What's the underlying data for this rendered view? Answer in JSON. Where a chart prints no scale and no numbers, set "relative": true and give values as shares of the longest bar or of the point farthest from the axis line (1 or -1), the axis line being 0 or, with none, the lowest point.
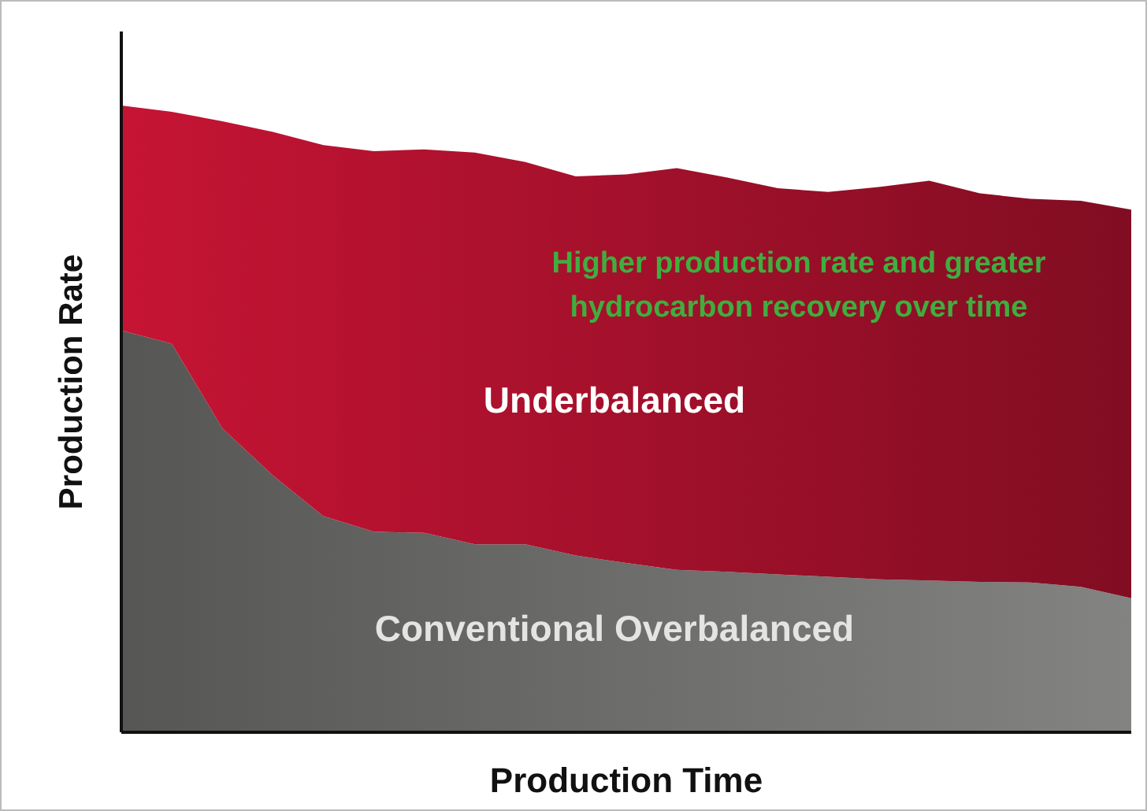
{
  "chart_data": {
    "type": "area",
    "relative": true,
    "stacked": true,
    "xlabel": "Production Time",
    "ylabel": "Production Rate",
    "annotations": [
      "Higher production rate and greater hydrocarbon recovery over time"
    ],
    "categories": [
      null,
      null,
      null,
      null,
      null,
      null,
      null,
      null,
      null,
      null,
      null,
      null,
      null,
      null,
      null,
      null,
      null,
      null,
      null,
      null,
      null
    ],
    "series": [
      {
        "name": "Conventional Overbalanced",
        "color": "#6a6a68",
        "values": [
          0.641,
          0.62,
          0.485,
          0.41,
          0.345,
          0.32,
          0.318,
          0.3,
          0.3,
          0.282,
          0.27,
          0.259,
          0.256,
          0.252,
          0.248,
          0.244,
          0.242,
          0.24,
          0.239,
          0.232,
          0.214
        ]
      },
      {
        "name": "Underbalanced",
        "color": "#a0102a",
        "values": [
          0.359,
          0.37,
          0.49,
          0.548,
          0.592,
          0.607,
          0.612,
          0.625,
          0.61,
          0.605,
          0.62,
          0.641,
          0.629,
          0.616,
          0.614,
          0.626,
          0.638,
          0.62,
          0.612,
          0.616,
          0.62
        ]
      }
    ]
  }
}
